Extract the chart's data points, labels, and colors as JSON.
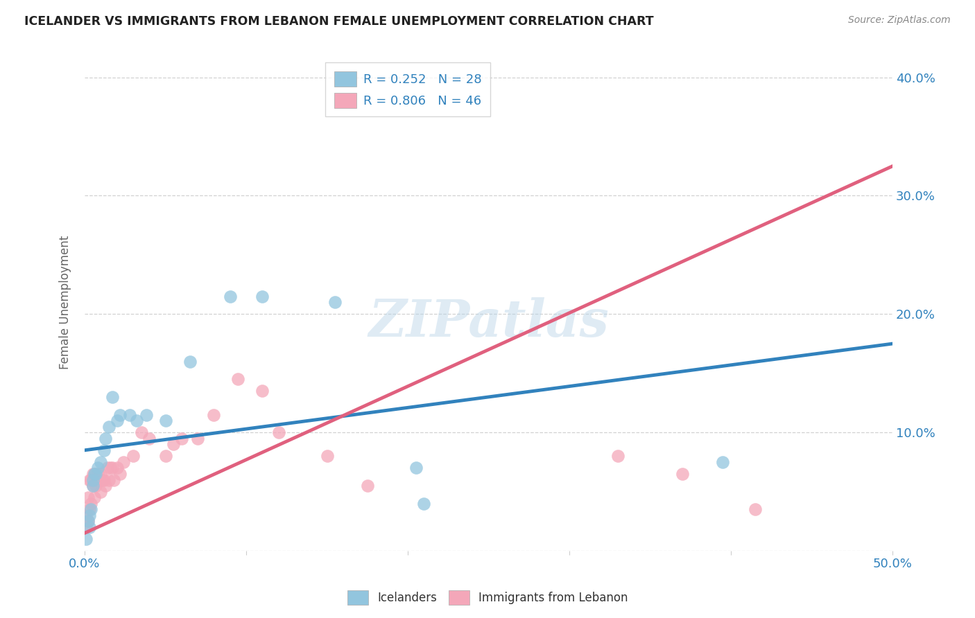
{
  "title": "ICELANDER VS IMMIGRANTS FROM LEBANON FEMALE UNEMPLOYMENT CORRELATION CHART",
  "source": "Source: ZipAtlas.com",
  "ylabel": "Female Unemployment",
  "xlim": [
    0.0,
    0.5
  ],
  "ylim": [
    0.0,
    0.42
  ],
  "blue_R": 0.252,
  "blue_N": 28,
  "pink_R": 0.806,
  "pink_N": 46,
  "blue_color": "#92c5de",
  "pink_color": "#f4a7b9",
  "blue_line_color": "#3182bd",
  "pink_line_color": "#e0607e",
  "watermark": "ZIPatlas",
  "legend_label_blue": "Icelanders",
  "legend_label_pink": "Immigrants from Lebanon",
  "blue_line_x0": 0.0,
  "blue_line_y0": 0.085,
  "blue_line_x1": 0.5,
  "blue_line_y1": 0.175,
  "pink_line_x0": 0.0,
  "pink_line_y0": 0.015,
  "pink_line_x1": 0.5,
  "pink_line_y1": 0.325,
  "blue_points_x": [
    0.001,
    0.002,
    0.003,
    0.003,
    0.004,
    0.005,
    0.005,
    0.006,
    0.007,
    0.008,
    0.01,
    0.012,
    0.013,
    0.015,
    0.017,
    0.02,
    0.022,
    0.028,
    0.032,
    0.038,
    0.05,
    0.065,
    0.09,
    0.11,
    0.155,
    0.205,
    0.395,
    0.21
  ],
  "blue_points_y": [
    0.01,
    0.025,
    0.02,
    0.03,
    0.035,
    0.055,
    0.06,
    0.065,
    0.065,
    0.07,
    0.075,
    0.085,
    0.095,
    0.105,
    0.13,
    0.11,
    0.115,
    0.115,
    0.11,
    0.115,
    0.11,
    0.16,
    0.215,
    0.215,
    0.21,
    0.07,
    0.075,
    0.04
  ],
  "pink_points_x": [
    0.001,
    0.001,
    0.002,
    0.002,
    0.003,
    0.003,
    0.004,
    0.004,
    0.005,
    0.005,
    0.006,
    0.006,
    0.007,
    0.007,
    0.008,
    0.008,
    0.009,
    0.01,
    0.01,
    0.011,
    0.012,
    0.013,
    0.014,
    0.015,
    0.016,
    0.017,
    0.018,
    0.02,
    0.022,
    0.024,
    0.03,
    0.035,
    0.04,
    0.05,
    0.055,
    0.06,
    0.07,
    0.08,
    0.095,
    0.11,
    0.12,
    0.15,
    0.175,
    0.33,
    0.37,
    0.415
  ],
  "pink_points_y": [
    0.02,
    0.03,
    0.025,
    0.045,
    0.035,
    0.06,
    0.04,
    0.06,
    0.055,
    0.065,
    0.045,
    0.065,
    0.055,
    0.06,
    0.06,
    0.065,
    0.06,
    0.05,
    0.065,
    0.06,
    0.06,
    0.055,
    0.07,
    0.06,
    0.07,
    0.07,
    0.06,
    0.07,
    0.065,
    0.075,
    0.08,
    0.1,
    0.095,
    0.08,
    0.09,
    0.095,
    0.095,
    0.115,
    0.145,
    0.135,
    0.1,
    0.08,
    0.055,
    0.08,
    0.065,
    0.035
  ],
  "background_color": "#ffffff",
  "grid_color": "#cccccc"
}
